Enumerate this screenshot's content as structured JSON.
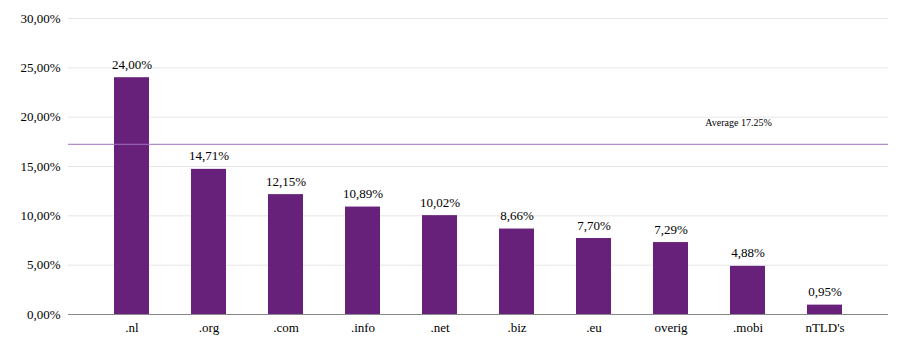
{
  "chart_data": {
    "type": "bar",
    "categories": [
      ".nl",
      ".org",
      ".com",
      ".info",
      ".net",
      ".biz",
      ".eu",
      "overig",
      ".mobi",
      "nTLD's"
    ],
    "values": [
      24.0,
      14.71,
      12.15,
      10.89,
      10.02,
      8.66,
      7.7,
      7.29,
      4.88,
      0.95
    ],
    "value_labels": [
      "24,00%",
      "14,71%",
      "12,15%",
      "10,89%",
      "10,02%",
      "8,66%",
      "7,70%",
      "7,29%",
      "4,88%",
      "0,95%"
    ],
    "data_labels": true,
    "color": "#68217a",
    "ylim": [
      0,
      30
    ],
    "yticks": [
      {
        "value": 0,
        "label": "0,00%"
      },
      {
        "value": 5,
        "label": "5,00%"
      },
      {
        "value": 10,
        "label": "10,00%"
      },
      {
        "value": 15,
        "label": "15,00%"
      },
      {
        "value": 20,
        "label": "20,00%"
      },
      {
        "value": 25,
        "label": "25,00%"
      },
      {
        "value": 30,
        "label": "30,00%"
      }
    ],
    "grid": true,
    "annotations": [
      {
        "label": "Average 17.25%",
        "y": 17.25,
        "line_style": "dashed"
      }
    ]
  }
}
